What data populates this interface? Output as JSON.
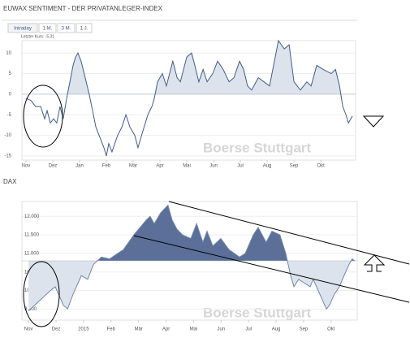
{
  "chart_data": [
    {
      "type": "area",
      "title": "EUWAX SENTIMENT - DER PRIVATANLEGER-INDEX",
      "tabs": [
        "Intraday",
        "1 M.",
        "3 M.",
        "1 J."
      ],
      "note": "Letzter Kurs: -5,31",
      "watermark": "Boerse Stuttgart",
      "x": [
        0,
        0.18,
        0.36,
        0.55,
        0.7,
        0.79,
        0.91,
        1.03,
        1.15,
        1.27,
        1.39,
        1.52,
        1.64,
        1.76,
        1.85,
        1.94,
        2.06,
        2.21,
        2.36,
        2.61,
        2.91,
        3.0,
        3.09,
        3.21,
        3.42,
        3.58,
        3.73,
        3.88,
        4.06,
        4.18,
        4.36,
        4.55,
        4.7,
        4.79,
        4.91,
        5.09,
        5.24,
        5.48,
        5.64,
        5.76,
        6.0,
        6.18,
        6.3,
        6.45,
        6.61,
        6.76,
        6.97,
        7.15,
        7.36,
        7.58,
        7.76,
        7.97,
        8.12,
        8.27,
        8.42,
        8.67,
        8.88,
        9.09,
        9.42,
        9.64,
        9.82,
        10.0,
        10.24,
        10.48,
        10.64,
        10.85,
        11.09,
        11.39,
        11.55,
        11.7,
        11.82,
        11.94,
        12.03,
        12.12,
        12.18
      ],
      "values": [
        -1,
        -1.5,
        -3,
        -3,
        -6,
        -4,
        -7,
        -6,
        -7,
        -3,
        -6,
        -1,
        3,
        7,
        9,
        10,
        8,
        4,
        0,
        -8,
        -13,
        -15,
        -12,
        -14,
        -10,
        -8,
        -5,
        -8,
        -10,
        -13,
        -9,
        -5,
        -3,
        -1,
        3,
        5,
        2,
        8,
        4,
        3,
        9,
        10,
        7,
        3,
        6,
        3,
        5,
        8,
        6,
        3,
        4,
        8,
        6,
        2,
        1,
        4,
        3,
        2,
        13,
        11,
        12,
        3,
        1,
        3,
        2,
        7,
        6,
        5,
        6,
        2,
        -3,
        -5,
        -7,
        -6,
        -5.31
      ],
      "color": "#3f5d8d",
      "fill_above": "#dde3ec",
      "fill_baseline": 0,
      "xlim": [
        -0.15,
        12.3
      ],
      "xticks": [
        {
          "value": 0,
          "label": "Nov"
        },
        {
          "value": 1,
          "label": "Dez"
        },
        {
          "value": 2,
          "label": "Jan"
        },
        {
          "value": 3,
          "label": "Feb"
        },
        {
          "value": 4,
          "label": "Mär"
        },
        {
          "value": 5,
          "label": "Apr"
        },
        {
          "value": 6,
          "label": "Mai"
        },
        {
          "value": 7,
          "label": "Jun"
        },
        {
          "value": 8,
          "label": "Jul"
        },
        {
          "value": 9,
          "label": "Aug"
        },
        {
          "value": 10,
          "label": "Sep"
        },
        {
          "value": 11,
          "label": "Okt"
        }
      ],
      "ylim": [
        -16,
        13
      ],
      "yticks": [
        -15,
        -10,
        -5,
        0,
        5,
        10
      ],
      "grid": true
    },
    {
      "type": "area",
      "title": "DAX",
      "watermark": "Boerse Stuttgart",
      "x": [
        0,
        0.8,
        0.97,
        1.27,
        1.42,
        1.62,
        1.92,
        2.15,
        2.36,
        2.65,
        2.95,
        3.24,
        3.45,
        3.83,
        4.28,
        4.42,
        4.57,
        4.81,
        5.07,
        5.22,
        5.4,
        5.6,
        5.9,
        6.11,
        6.34,
        6.49,
        6.7,
        6.99,
        7.29,
        7.67,
        7.88,
        8.17,
        8.35,
        8.64,
        8.85,
        9.14,
        9.35,
        9.53,
        9.65,
        9.82,
        10.03,
        10.24,
        10.35,
        10.53,
        10.71,
        10.83,
        10.94,
        11.12,
        11.3,
        11.47,
        11.65,
        11.77,
        11.86
      ],
      "values": [
        9450,
        10000,
        10100,
        9600,
        9500,
        9900,
        10400,
        10300,
        10700,
        10900,
        10850,
        11000,
        11100,
        11500,
        11900,
        12000,
        11800,
        12100,
        12300,
        11900,
        11650,
        11500,
        11400,
        11800,
        11300,
        11600,
        11200,
        11400,
        11100,
        10900,
        11000,
        11500,
        11700,
        11300,
        11600,
        11500,
        11000,
        10400,
        10100,
        10300,
        10200,
        10100,
        10300,
        10000,
        9700,
        9500,
        9600,
        9900,
        10100,
        10400,
        10700,
        10850,
        10800
      ],
      "color": "#6f86ad",
      "fill_above": "#5b6f98",
      "fill_below": "#dde3ec",
      "fill_baseline": 10800,
      "xlim": [
        -0.24,
        11.95
      ],
      "xticks": [
        {
          "value": 0,
          "label": "Nov"
        },
        {
          "value": 1,
          "label": "Dez"
        },
        {
          "value": 2,
          "label": "2015"
        },
        {
          "value": 3,
          "label": "Feb"
        },
        {
          "value": 4,
          "label": "Mär"
        },
        {
          "value": 5,
          "label": "Apr"
        },
        {
          "value": 6,
          "label": "Mai"
        },
        {
          "value": 7,
          "label": "Jun"
        },
        {
          "value": 8,
          "label": "Jul"
        },
        {
          "value": 9,
          "label": "Aug"
        },
        {
          "value": 10,
          "label": "Sep"
        },
        {
          "value": 11,
          "label": "Okt"
        }
      ],
      "ylim": [
        9200,
        12400
      ],
      "yticks": [
        {
          "value": 9500,
          "label": "9.500"
        },
        {
          "value": 10000,
          "label": "10.000"
        },
        {
          "value": 10500,
          "label": "10.500"
        },
        {
          "value": 11000,
          "label": "11.000"
        },
        {
          "value": 11500,
          "label": "11.500"
        },
        {
          "value": 12000,
          "label": "12.000"
        }
      ],
      "grid": true
    }
  ]
}
